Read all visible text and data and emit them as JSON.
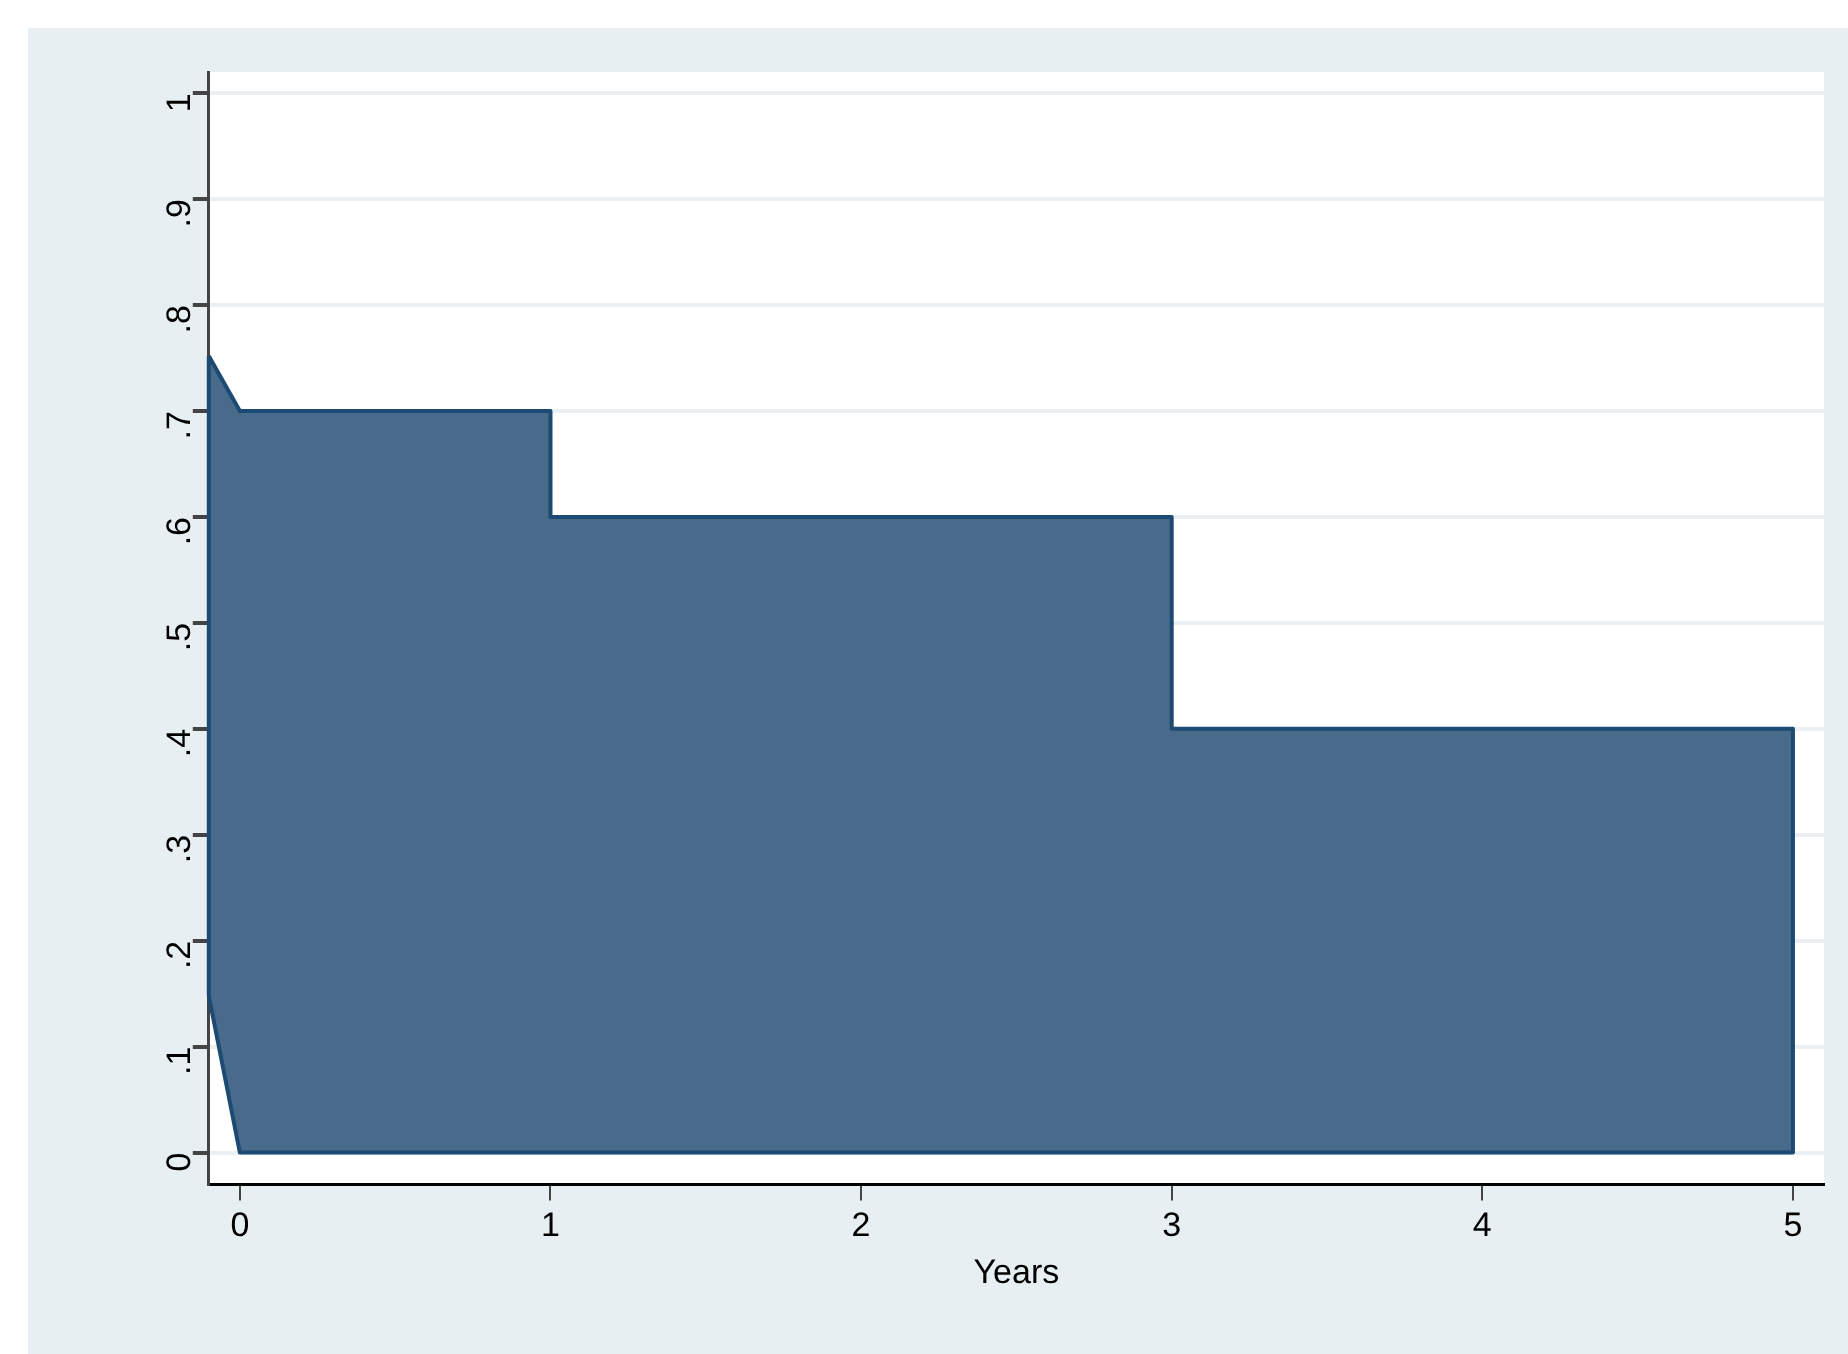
{
  "chart_data": {
    "type": "area",
    "xlabel": "Years",
    "series": [
      {
        "color": "#496b8b",
        "x": [
          -0.1,
          0,
          1,
          1,
          3,
          3,
          5,
          5,
          0,
          -0.1,
          -0.1
        ],
        "values": [
          0.752,
          0.7,
          0.7,
          0.6,
          0.6,
          0.4,
          0.4,
          0,
          0,
          0.148,
          0.752
        ]
      }
    ],
    "xlim": [
      -0.1,
      5.1
    ],
    "xticks": [
      0,
      1,
      2,
      3,
      4,
      5
    ],
    "ylim": [
      -0.03,
      1.02
    ],
    "yticks": [
      0,
      {
        "value": 0.1,
        "label": ".1"
      },
      {
        "value": 0.2,
        "label": ".2"
      },
      {
        "value": 0.3,
        "label": ".3"
      },
      {
        "value": 0.4,
        "label": ".4"
      },
      {
        "value": 0.5,
        "label": ".5"
      },
      {
        "value": 0.6,
        "label": ".6"
      },
      {
        "value": 0.7,
        "label": ".7"
      },
      {
        "value": 0.8,
        "label": ".8"
      },
      {
        "value": 0.9,
        "label": ".9"
      },
      1
    ],
    "grid": "y",
    "legend": false,
    "marker": "none",
    "line_style": "solid"
  }
}
